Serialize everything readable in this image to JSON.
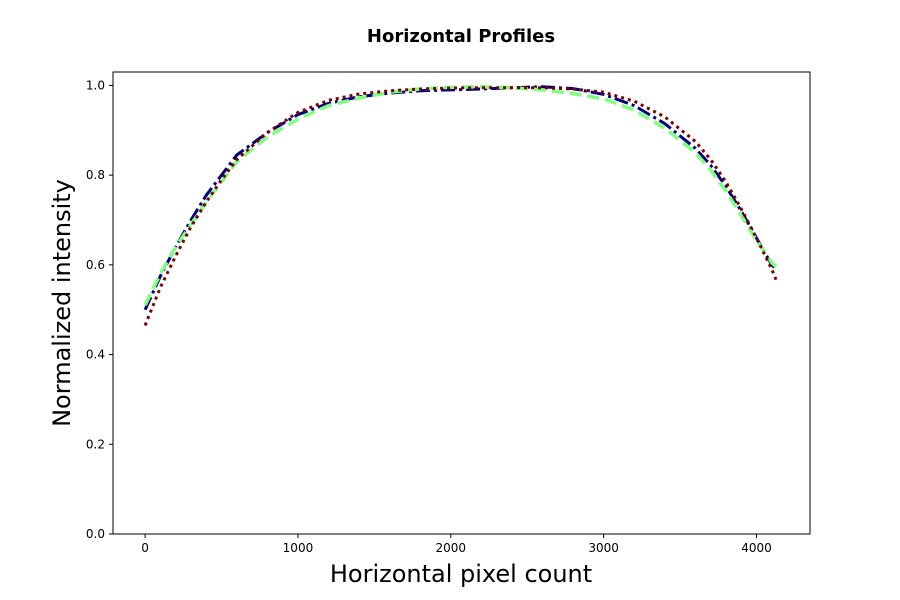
{
  "chart_data": {
    "type": "line",
    "title": "Horizontal Profiles",
    "xlabel": "Horizontal pixel count",
    "ylabel": "Normalized intensity",
    "xlim": [
      -210,
      4350
    ],
    "ylim": [
      0.0,
      1.03
    ],
    "xticks": [
      0,
      1000,
      2000,
      3000,
      4000
    ],
    "xtick_labels": [
      "0",
      "1000",
      "2000",
      "3000",
      "4000"
    ],
    "yticks": [
      0.0,
      0.2,
      0.4,
      0.6,
      0.8,
      1.0
    ],
    "ytick_labels": [
      "0.0",
      "0.2",
      "0.4",
      "0.6",
      "0.8",
      "1.0"
    ],
    "grid": false,
    "legend": "none",
    "series": [
      {
        "color": "#00007f",
        "style": "dashdot",
        "x": [
          0,
          100,
          200,
          300,
          400,
          500,
          600,
          800,
          1000,
          1200,
          1400,
          1600,
          1800,
          2000,
          2200,
          2400,
          2600,
          2800,
          3000,
          3200,
          3400,
          3600,
          3700,
          3800,
          3900,
          4000,
          4100,
          4130
        ],
        "y": [
          0.5,
          0.575,
          0.64,
          0.7,
          0.755,
          0.8,
          0.845,
          0.895,
          0.935,
          0.96,
          0.975,
          0.983,
          0.988,
          0.99,
          0.992,
          0.995,
          0.997,
          0.993,
          0.98,
          0.955,
          0.915,
          0.86,
          0.822,
          0.775,
          0.72,
          0.66,
          0.6,
          0.59
        ]
      },
      {
        "color": "#7fff7f",
        "style": "dashed",
        "x": [
          0,
          100,
          200,
          300,
          400,
          500,
          600,
          800,
          1000,
          1200,
          1400,
          1600,
          1800,
          2000,
          2200,
          2400,
          2600,
          2800,
          3000,
          3200,
          3400,
          3600,
          3700,
          3800,
          3900,
          4000,
          4100,
          4130
        ],
        "y": [
          0.51,
          0.58,
          0.64,
          0.69,
          0.74,
          0.785,
          0.83,
          0.885,
          0.925,
          0.955,
          0.972,
          0.985,
          0.992,
          0.996,
          0.997,
          0.995,
          0.99,
          0.982,
          0.97,
          0.945,
          0.905,
          0.85,
          0.812,
          0.765,
          0.71,
          0.655,
          0.605,
          0.595
        ]
      },
      {
        "color": "#7f0000",
        "style": "dotted",
        "x": [
          0,
          100,
          200,
          300,
          400,
          500,
          600,
          800,
          1000,
          1200,
          1400,
          1600,
          1800,
          2000,
          2200,
          2400,
          2600,
          2800,
          3000,
          3200,
          3400,
          3600,
          3700,
          3800,
          3900,
          4000,
          4100,
          4130
        ],
        "y": [
          0.465,
          0.55,
          0.62,
          0.685,
          0.74,
          0.79,
          0.835,
          0.895,
          0.94,
          0.967,
          0.981,
          0.988,
          0.992,
          0.994,
          0.995,
          0.995,
          0.995,
          0.992,
          0.985,
          0.965,
          0.93,
          0.875,
          0.835,
          0.785,
          0.725,
          0.66,
          0.59,
          0.565
        ]
      }
    ]
  }
}
